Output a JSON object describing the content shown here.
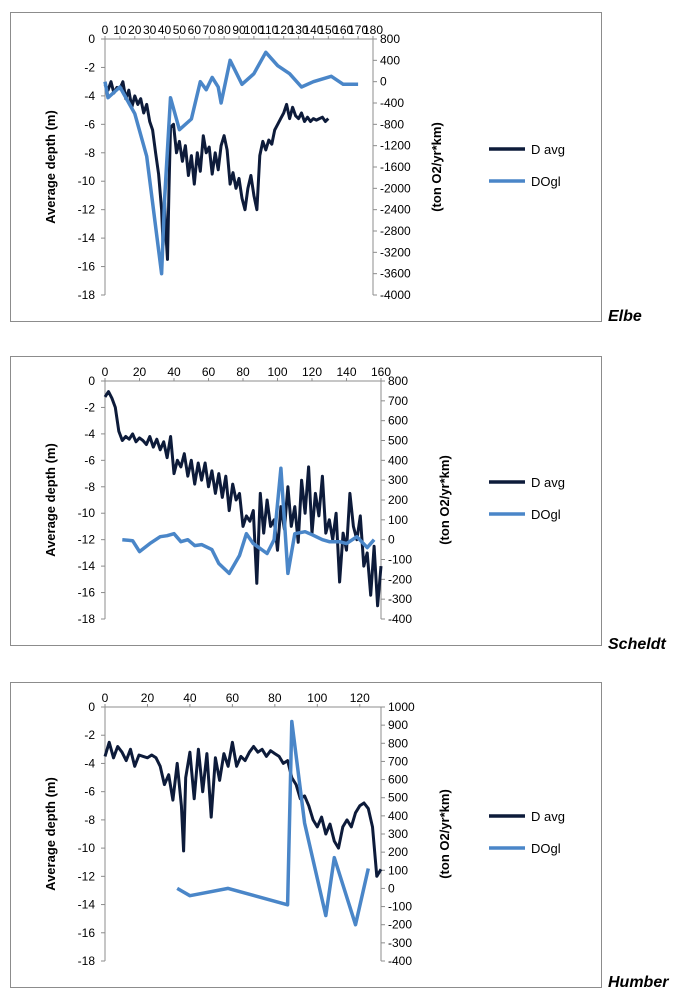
{
  "chart_data": [
    {
      "type": "line",
      "river_label": "Elbe",
      "xlabel": "",
      "ylabel": "Average depth (m)",
      "y2label": "(ton O2/yr*km)",
      "x_ticks": [
        0,
        10,
        20,
        30,
        40,
        50,
        60,
        70,
        80,
        90,
        100,
        110,
        120,
        130,
        140,
        150,
        160,
        170,
        180
      ],
      "y_ticks": [
        0,
        -2,
        -4,
        -6,
        -8,
        -10,
        -12,
        -14,
        -16,
        -18
      ],
      "y2_ticks": [
        800,
        400,
        0,
        -400,
        -800,
        -1200,
        -1600,
        -2000,
        -2400,
        -2800,
        -3200,
        -3600,
        -4000
      ],
      "xlim": [
        0,
        180
      ],
      "ylim": [
        -18,
        0
      ],
      "y2lim": [
        -4000,
        800
      ],
      "legend_position": "right",
      "series": [
        {
          "name": "D avg",
          "axis": "left",
          "color": "#0d1b3a",
          "x": [
            0,
            2,
            4,
            6,
            8,
            10,
            12,
            14,
            16,
            18,
            20,
            22,
            24,
            26,
            28,
            30,
            32,
            34,
            36,
            38,
            39,
            40,
            41,
            42,
            43,
            44,
            46,
            48,
            50,
            52,
            54,
            56,
            58,
            60,
            62,
            64,
            66,
            68,
            70,
            72,
            74,
            76,
            78,
            80,
            82,
            84,
            86,
            88,
            90,
            92,
            94,
            96,
            98,
            100,
            102,
            104,
            106,
            108,
            110,
            112,
            114,
            116,
            118,
            120,
            122,
            124,
            126,
            128,
            130,
            132,
            134,
            136,
            138,
            140,
            142,
            144,
            146,
            148,
            150
          ],
          "y": [
            -3.2,
            -3.6,
            -3.0,
            -3.8,
            -3.4,
            -3.5,
            -3.0,
            -4.2,
            -3.6,
            -4.8,
            -4.0,
            -4.6,
            -4.2,
            -5.2,
            -4.6,
            -5.8,
            -6.4,
            -8.0,
            -9.5,
            -12.0,
            -14.5,
            -11.5,
            -13.8,
            -15.5,
            -10.5,
            -6.2,
            -6.0,
            -8.0,
            -7.2,
            -8.6,
            -7.5,
            -9.6,
            -8.2,
            -10.2,
            -8.0,
            -9.3,
            -6.8,
            -8.0,
            -7.6,
            -9.5,
            -8.0,
            -9.2,
            -7.5,
            -6.8,
            -7.8,
            -10.2,
            -9.4,
            -10.5,
            -9.8,
            -11.2,
            -12.0,
            -10.5,
            -9.6,
            -11.0,
            -12.0,
            -8.2,
            -7.2,
            -7.8,
            -7.1,
            -7.4,
            -6.4,
            -6.0,
            -5.6,
            -5.2,
            -4.6,
            -5.6,
            -4.8,
            -5.4,
            -5.6,
            -5.2,
            -5.8,
            -5.5,
            -5.8,
            -5.6,
            -5.7,
            -5.6,
            -5.5,
            -5.8,
            -5.6
          ]
        },
        {
          "name": "DOgl",
          "axis": "right",
          "color": "#4a86c8",
          "x": [
            0,
            2,
            10,
            20,
            28,
            38,
            40,
            44,
            50,
            58,
            64,
            68,
            72,
            76,
            78,
            84,
            92,
            100,
            108,
            116,
            124,
            132,
            140,
            152,
            160,
            170
          ],
          "y": [
            0,
            -300,
            -100,
            -600,
            -1400,
            -3600,
            -2200,
            -300,
            -900,
            -700,
            0,
            -150,
            80,
            -100,
            -400,
            400,
            -50,
            150,
            550,
            300,
            150,
            -100,
            0,
            100,
            -50,
            -50
          ]
        }
      ]
    },
    {
      "type": "line",
      "river_label": "Scheldt",
      "xlabel": "",
      "ylabel": "Average depth (m)",
      "y2label": "(ton O2/yr*km)",
      "x_ticks": [
        0,
        20,
        40,
        60,
        80,
        100,
        120,
        140,
        160
      ],
      "y_ticks": [
        0,
        -2,
        -4,
        -6,
        -8,
        -10,
        -12,
        -14,
        -16,
        -18
      ],
      "y2_ticks": [
        800,
        700,
        600,
        500,
        400,
        300,
        200,
        100,
        0,
        -100,
        -200,
        -300,
        -400
      ],
      "xlim": [
        0,
        160
      ],
      "ylim": [
        -18,
        0
      ],
      "y2lim": [
        -400,
        800
      ],
      "legend_position": "right",
      "series": [
        {
          "name": "D avg",
          "axis": "left",
          "color": "#0d1b3a",
          "x": [
            0,
            2,
            4,
            6,
            8,
            10,
            12,
            14,
            16,
            18,
            20,
            22,
            24,
            26,
            28,
            30,
            32,
            34,
            36,
            38,
            40,
            42,
            44,
            46,
            48,
            50,
            52,
            54,
            56,
            58,
            60,
            62,
            64,
            66,
            68,
            70,
            72,
            74,
            76,
            78,
            80,
            82,
            84,
            86,
            88,
            90,
            92,
            94,
            96,
            98,
            100,
            102,
            104,
            106,
            108,
            110,
            112,
            114,
            116,
            118,
            120,
            122,
            124,
            126,
            128,
            130,
            132,
            134,
            136,
            138,
            140,
            142,
            144,
            146,
            148,
            150,
            152,
            154,
            156,
            158,
            160
          ],
          "y": [
            -1.2,
            -0.8,
            -1.3,
            -2.0,
            -3.8,
            -4.5,
            -4.2,
            -4.4,
            -4.0,
            -4.6,
            -4.3,
            -4.5,
            -4.8,
            -4.2,
            -5.0,
            -4.4,
            -5.2,
            -4.6,
            -5.8,
            -4.2,
            -7.0,
            -6.0,
            -6.5,
            -5.5,
            -7.2,
            -6.0,
            -7.8,
            -6.2,
            -7.5,
            -6.2,
            -8.0,
            -6.8,
            -8.5,
            -7.0,
            -8.8,
            -7.2,
            -9.8,
            -7.8,
            -9.0,
            -8.5,
            -11.0,
            -10.2,
            -10.6,
            -9.8,
            -15.3,
            -8.5,
            -11.5,
            -9.0,
            -11.0,
            -10.5,
            -12.8,
            -9.5,
            -11.2,
            -8.0,
            -11.0,
            -9.5,
            -12.2,
            -7.5,
            -10.0,
            -6.5,
            -11.5,
            -8.5,
            -10.2,
            -7.2,
            -11.5,
            -10.5,
            -12.0,
            -10.0,
            -15.2,
            -11.5,
            -12.8,
            -8.5,
            -11.0,
            -12.0,
            -10.2,
            -14.0,
            -13.0,
            -16.2,
            -12.5,
            -17.0,
            -14.0
          ]
        },
        {
          "name": "DOgl",
          "axis": "right",
          "color": "#4a86c8",
          "x": [
            10,
            16,
            20,
            26,
            32,
            36,
            40,
            44,
            48,
            52,
            56,
            62,
            66,
            72,
            78,
            82,
            86,
            94,
            98,
            102,
            106,
            110,
            116,
            120,
            126,
            130,
            136,
            140,
            146,
            152,
            156
          ],
          "y": [
            0,
            -5,
            -60,
            -20,
            15,
            20,
            30,
            -10,
            0,
            -30,
            -25,
            -50,
            -120,
            -170,
            -80,
            30,
            -20,
            -70,
            0,
            360,
            -170,
            30,
            40,
            25,
            0,
            -10,
            -10,
            -20,
            15,
            -40,
            0
          ]
        }
      ]
    },
    {
      "type": "line",
      "river_label": "Humber",
      "xlabel": "",
      "ylabel": "Average depth (m)",
      "y2label": "(ton O2/yr*km)",
      "x_ticks": [
        0,
        20,
        40,
        60,
        80,
        100,
        120
      ],
      "y_ticks": [
        0,
        -2,
        -4,
        -6,
        -8,
        -10,
        -12,
        -14,
        -16,
        -18
      ],
      "y2_ticks": [
        1000,
        900,
        800,
        700,
        600,
        500,
        400,
        300,
        200,
        100,
        0,
        -100,
        -200,
        -300,
        -400
      ],
      "xlim": [
        0,
        130
      ],
      "ylim": [
        -18,
        0
      ],
      "y2lim": [
        -400,
        1000
      ],
      "legend_position": "right",
      "series": [
        {
          "name": "D avg",
          "axis": "left",
          "color": "#0d1b3a",
          "x": [
            0,
            2,
            4,
            6,
            8,
            10,
            12,
            14,
            16,
            18,
            20,
            22,
            24,
            26,
            28,
            30,
            32,
            34,
            36,
            37,
            38,
            40,
            42,
            44,
            46,
            48,
            50,
            52,
            54,
            56,
            58,
            60,
            62,
            64,
            66,
            68,
            70,
            72,
            74,
            76,
            78,
            80,
            82,
            84,
            86,
            88,
            90,
            92,
            94,
            96,
            98,
            100,
            102,
            104,
            106,
            108,
            110,
            112,
            114,
            116,
            118,
            120,
            122,
            124,
            126,
            128,
            130
          ],
          "y": [
            -3.5,
            -2.5,
            -3.6,
            -2.8,
            -3.2,
            -3.8,
            -3.0,
            -4.2,
            -3.4,
            -3.5,
            -3.6,
            -3.4,
            -3.6,
            -4.2,
            -5.5,
            -4.8,
            -6.6,
            -4.0,
            -7.0,
            -10.2,
            -5.0,
            -3.2,
            -6.5,
            -3.0,
            -6.0,
            -3.3,
            -7.8,
            -3.6,
            -5.2,
            -3.3,
            -4.2,
            -2.5,
            -4.2,
            -3.5,
            -3.8,
            -3.2,
            -2.8,
            -3.2,
            -3.0,
            -3.5,
            -3.1,
            -3.3,
            -3.5,
            -4.0,
            -3.8,
            -5.0,
            -5.5,
            -6.5,
            -6.3,
            -7.0,
            -8.0,
            -8.5,
            -7.8,
            -9.0,
            -8.3,
            -9.5,
            -10.0,
            -8.5,
            -8.0,
            -8.5,
            -7.5,
            -7.0,
            -6.8,
            -7.2,
            -8.5,
            -12.0,
            -11.5
          ]
        },
        {
          "name": "DOgl",
          "axis": "right",
          "color": "#4a86c8",
          "x": [
            34,
            40,
            58,
            86,
            88,
            94,
            104,
            108,
            118,
            124
          ],
          "y": [
            0,
            -40,
            0,
            -90,
            920,
            360,
            -150,
            170,
            -200,
            110
          ]
        }
      ]
    }
  ]
}
